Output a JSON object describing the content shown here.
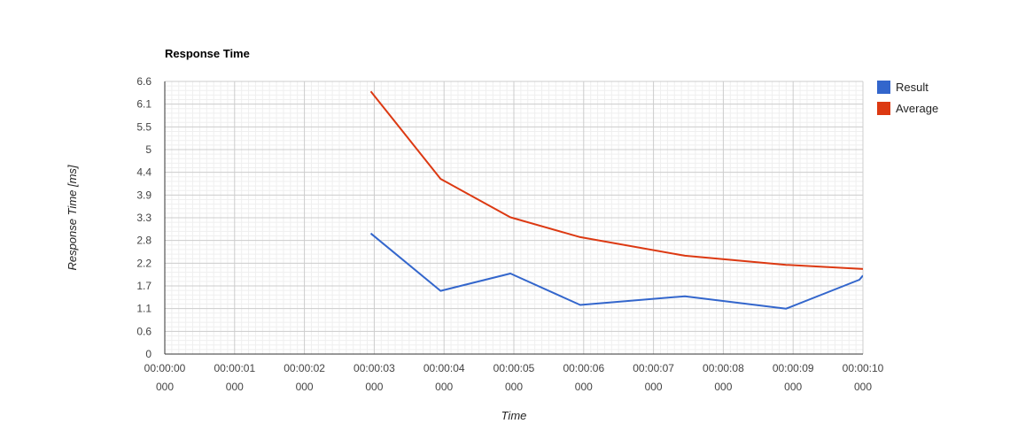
{
  "chart_data": {
    "type": "line",
    "title": "Response Time",
    "xlabel": "Time",
    "ylabel": "Response Time [ms]",
    "ylim": [
      0,
      6.6
    ],
    "yticks": [
      "0",
      "0.6",
      "1.1",
      "1.7",
      "2.2",
      "2.8",
      "3.3",
      "3.9",
      "4.4",
      "5",
      "5.5",
      "6.1",
      "6.6"
    ],
    "xlim": [
      0,
      10
    ],
    "xticks": [
      {
        "time": "00:00:00",
        "ms": "000"
      },
      {
        "time": "00:00:01",
        "ms": "000"
      },
      {
        "time": "00:00:02",
        "ms": "000"
      },
      {
        "time": "00:00:03",
        "ms": "000"
      },
      {
        "time": "00:00:04",
        "ms": "000"
      },
      {
        "time": "00:00:05",
        "ms": "000"
      },
      {
        "time": "00:00:06",
        "ms": "000"
      },
      {
        "time": "00:00:07",
        "ms": "000"
      },
      {
        "time": "00:00:08",
        "ms": "000"
      },
      {
        "time": "00:00:09",
        "ms": "000"
      },
      {
        "time": "00:00:10",
        "ms": "000"
      }
    ],
    "grid": true,
    "legend_position": "right",
    "series": [
      {
        "name": "Result",
        "color": "#3366cc",
        "points": [
          [
            2.95,
            2.92
          ],
          [
            3.95,
            1.53
          ],
          [
            4.95,
            1.95
          ],
          [
            5.95,
            1.19
          ],
          [
            7.45,
            1.4
          ],
          [
            8.9,
            1.1
          ],
          [
            9.95,
            1.8
          ],
          [
            10.0,
            1.9
          ]
        ]
      },
      {
        "name": "Average",
        "color": "#dc3912",
        "points": [
          [
            2.95,
            6.36
          ],
          [
            3.95,
            4.24
          ],
          [
            4.95,
            3.31
          ],
          [
            5.95,
            2.83
          ],
          [
            7.45,
            2.38
          ],
          [
            8.9,
            2.16
          ],
          [
            10.0,
            2.06
          ]
        ]
      }
    ]
  }
}
